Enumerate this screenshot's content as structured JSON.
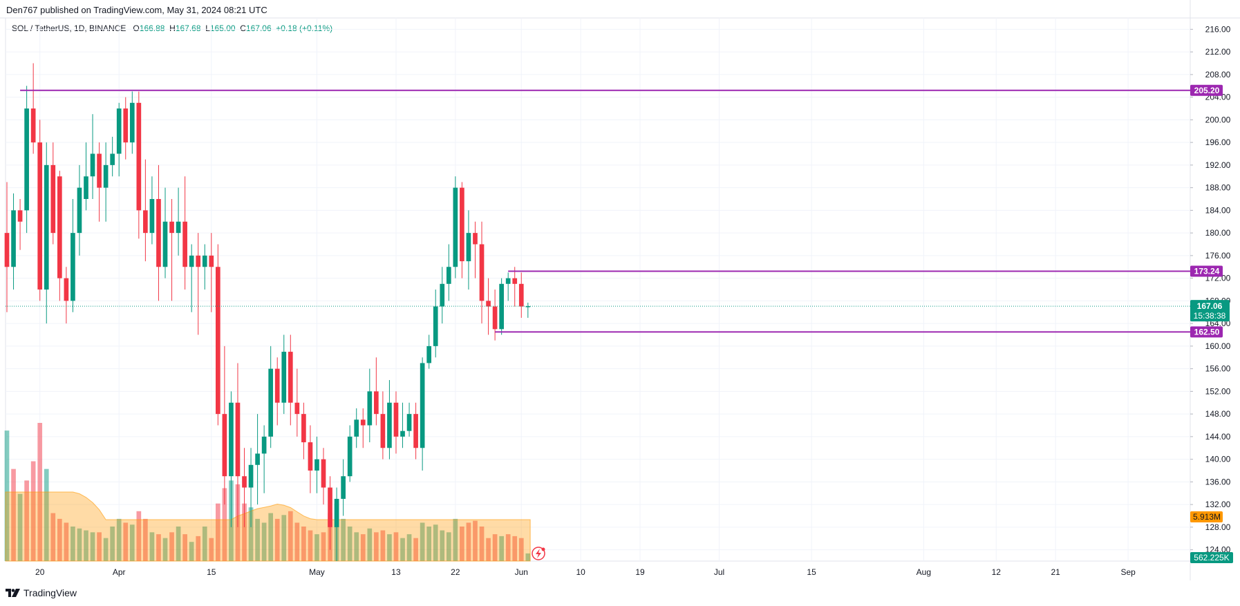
{
  "header": {
    "published_by": "Den767 published on TradingView.com, May 31, 2024 08:21 UTC"
  },
  "legend": {
    "symbol": "SOL / TetherUS, 1D, BINANCE",
    "open_label": "O",
    "open": "166.88",
    "high_label": "H",
    "high": "167.68",
    "low_label": "L",
    "low": "165.00",
    "close_label": "C",
    "close": "167.06",
    "change": "+0.18 (+0.11%)"
  },
  "footer": {
    "brand": "TradingView"
  },
  "colors": {
    "up": "#089981",
    "down": "#f23645",
    "level_line": "#9c27b0",
    "volume_ma": "#ff9800",
    "grid": "#f0f3fa",
    "axis_text": "#131722"
  },
  "icons": {
    "brand_logo": "tradingview-logo-icon",
    "replay": "lightning-icon"
  },
  "chart_data": {
    "type": "candlestick",
    "symbol": "SOL / TetherUS",
    "interval": "1D",
    "exchange": "BINANCE",
    "ylim": [
      122,
      218
    ],
    "y_ticks": [
      "124.00",
      "128.00",
      "132.00",
      "136.00",
      "140.00",
      "144.00",
      "148.00",
      "152.00",
      "156.00",
      "160.00",
      "164.00",
      "168.00",
      "172.00",
      "176.00",
      "180.00",
      "184.00",
      "188.00",
      "192.00",
      "196.00",
      "200.00",
      "204.00",
      "208.00",
      "212.00",
      "216.00"
    ],
    "x_ticks": [
      {
        "label": "20",
        "day": 0
      },
      {
        "label": "Apr",
        "day": 12
      },
      {
        "label": "15",
        "day": 26
      },
      {
        "label": "May",
        "day": 42
      },
      {
        "label": "13",
        "day": 54
      },
      {
        "label": "22",
        "day": 63
      },
      {
        "label": "Jun",
        "day": 73
      },
      {
        "label": "10",
        "day": 82
      },
      {
        "label": "19",
        "day": 91
      },
      {
        "label": "Jul",
        "day": 103
      },
      {
        "label": "15",
        "day": 117
      },
      {
        "label": "Aug",
        "day": 134
      },
      {
        "label": "12",
        "day": 145
      },
      {
        "label": "21",
        "day": 154
      },
      {
        "label": "Sep",
        "day": 165
      }
    ],
    "day_start": -5,
    "day_end": 174,
    "candles": [
      [
        -5,
        180,
        174,
        189,
        166
      ],
      [
        -4,
        174,
        184,
        187,
        170
      ],
      [
        -3,
        184,
        182,
        186,
        177
      ],
      [
        -2,
        184,
        202,
        206,
        180
      ],
      [
        -1,
        202,
        196,
        210,
        194
      ],
      [
        0,
        196,
        170,
        200,
        168
      ],
      [
        1,
        170,
        192,
        196,
        164
      ],
      [
        2,
        192,
        180,
        196,
        178
      ],
      [
        3,
        190,
        172,
        191,
        168
      ],
      [
        4,
        172,
        168,
        174,
        164
      ],
      [
        5,
        168,
        180,
        186,
        166
      ],
      [
        6,
        180,
        188,
        192,
        176
      ],
      [
        7,
        186,
        190,
        196,
        184
      ],
      [
        8,
        190,
        194,
        201,
        186
      ],
      [
        9,
        194,
        188,
        196,
        182
      ],
      [
        10,
        188,
        192,
        196,
        182
      ],
      [
        11,
        192,
        194,
        197,
        190
      ],
      [
        12,
        194,
        202,
        203,
        190
      ],
      [
        13,
        202,
        196,
        204,
        193
      ],
      [
        14,
        196,
        203,
        205,
        194
      ],
      [
        15,
        203,
        184,
        205,
        179
      ],
      [
        16,
        184,
        180,
        193,
        175
      ],
      [
        17,
        180,
        186,
        190,
        178
      ],
      [
        18,
        186,
        174,
        192,
        168
      ],
      [
        19,
        174,
        182,
        188,
        172
      ],
      [
        20,
        182,
        180,
        186,
        168
      ],
      [
        21,
        180,
        182,
        188,
        176
      ],
      [
        22,
        182,
        174,
        190,
        170
      ],
      [
        23,
        174,
        176,
        178,
        166
      ],
      [
        24,
        176,
        174,
        180,
        162
      ],
      [
        25,
        174,
        176,
        178,
        170
      ],
      [
        26,
        176,
        174,
        180,
        166
      ],
      [
        27,
        174,
        148,
        178,
        146
      ],
      [
        28,
        148,
        137,
        160,
        132
      ],
      [
        29,
        137,
        150,
        152,
        128
      ],
      [
        30,
        150,
        137,
        157,
        128
      ],
      [
        31,
        137,
        135,
        142,
        128
      ],
      [
        32,
        135,
        139,
        142,
        128
      ],
      [
        33,
        139,
        141,
        148,
        132
      ],
      [
        34,
        141,
        144,
        146,
        134
      ],
      [
        35,
        144,
        156,
        160,
        142
      ],
      [
        36,
        156,
        150,
        158,
        146
      ],
      [
        37,
        150,
        159,
        162,
        148
      ],
      [
        38,
        159,
        150,
        162,
        146
      ],
      [
        39,
        150,
        148,
        156,
        144
      ],
      [
        40,
        148,
        143,
        150,
        140
      ],
      [
        41,
        143,
        138,
        146,
        134
      ],
      [
        42,
        138,
        140,
        144,
        134
      ],
      [
        43,
        140,
        135,
        142,
        132
      ],
      [
        44,
        135,
        128,
        137,
        124
      ],
      [
        45,
        128,
        133,
        135,
        122
      ],
      [
        46,
        133,
        137,
        140,
        130
      ],
      [
        47,
        137,
        144,
        146,
        136
      ],
      [
        48,
        144,
        147,
        149,
        142
      ],
      [
        49,
        147,
        146,
        149,
        142
      ],
      [
        50,
        146,
        152,
        156,
        143
      ],
      [
        51,
        152,
        148,
        158,
        146
      ],
      [
        52,
        148,
        142,
        152,
        140
      ],
      [
        53,
        142,
        150,
        154,
        140
      ],
      [
        54,
        150,
        144,
        152,
        141
      ],
      [
        55,
        144,
        145,
        150,
        142
      ],
      [
        56,
        145,
        148,
        150,
        144
      ],
      [
        57,
        148,
        142,
        150,
        140
      ],
      [
        58,
        142,
        157,
        158,
        138
      ],
      [
        59,
        157,
        160,
        162,
        156
      ],
      [
        60,
        160,
        167,
        170,
        158
      ],
      [
        61,
        167,
        171,
        174,
        164
      ],
      [
        62,
        171,
        174,
        178,
        168
      ],
      [
        63,
        174,
        188,
        190,
        172
      ],
      [
        64,
        188,
        175,
        189,
        172
      ],
      [
        65,
        175,
        180,
        184,
        170
      ],
      [
        66,
        180,
        178,
        182,
        172
      ],
      [
        67,
        178,
        168,
        182,
        164
      ],
      [
        68,
        168,
        167,
        172,
        162
      ],
      [
        69,
        167,
        163,
        170,
        161
      ],
      [
        70,
        163,
        171,
        172,
        162
      ],
      [
        71,
        171,
        172,
        173,
        168
      ],
      [
        72,
        172,
        171,
        174,
        167
      ],
      [
        73,
        171,
        167,
        173,
        165
      ],
      [
        74,
        166.88,
        167.06,
        167.68,
        165.0
      ]
    ],
    "volume_max_label": "562.225K",
    "volume_ma_label": "5.913M",
    "volumes": [
      [
        -5,
        0.68,
        "up"
      ],
      [
        -4,
        0.48,
        "down"
      ],
      [
        -3,
        0.35,
        "up"
      ],
      [
        -2,
        0.42,
        "down"
      ],
      [
        -1,
        0.52,
        "down"
      ],
      [
        0,
        0.72,
        "down"
      ],
      [
        1,
        0.48,
        "up"
      ],
      [
        2,
        0.25,
        "down"
      ],
      [
        3,
        0.22,
        "down"
      ],
      [
        4,
        0.2,
        "down"
      ],
      [
        5,
        0.18,
        "up"
      ],
      [
        6,
        0.17,
        "up"
      ],
      [
        7,
        0.16,
        "up"
      ],
      [
        8,
        0.15,
        "up"
      ],
      [
        9,
        0.15,
        "down"
      ],
      [
        10,
        0.12,
        "up"
      ],
      [
        11,
        0.18,
        "up"
      ],
      [
        12,
        0.22,
        "up"
      ],
      [
        13,
        0.2,
        "down"
      ],
      [
        14,
        0.19,
        "up"
      ],
      [
        15,
        0.26,
        "down"
      ],
      [
        16,
        0.22,
        "down"
      ],
      [
        17,
        0.15,
        "up"
      ],
      [
        18,
        0.14,
        "down"
      ],
      [
        19,
        0.12,
        "up"
      ],
      [
        20,
        0.15,
        "down"
      ],
      [
        21,
        0.18,
        "up"
      ],
      [
        22,
        0.14,
        "down"
      ],
      [
        23,
        0.1,
        "up"
      ],
      [
        24,
        0.13,
        "down"
      ],
      [
        25,
        0.18,
        "up"
      ],
      [
        26,
        0.12,
        "down"
      ],
      [
        27,
        0.3,
        "down"
      ],
      [
        28,
        0.38,
        "down"
      ],
      [
        29,
        0.42,
        "up"
      ],
      [
        30,
        0.4,
        "down"
      ],
      [
        31,
        0.3,
        "down"
      ],
      [
        32,
        0.28,
        "up"
      ],
      [
        33,
        0.22,
        "up"
      ],
      [
        34,
        0.2,
        "up"
      ],
      [
        35,
        0.25,
        "up"
      ],
      [
        36,
        0.22,
        "down"
      ],
      [
        37,
        0.24,
        "up"
      ],
      [
        38,
        0.26,
        "down"
      ],
      [
        39,
        0.2,
        "down"
      ],
      [
        40,
        0.18,
        "down"
      ],
      [
        41,
        0.16,
        "down"
      ],
      [
        42,
        0.14,
        "up"
      ],
      [
        43,
        0.15,
        "down"
      ],
      [
        44,
        0.25,
        "down"
      ],
      [
        45,
        0.3,
        "up"
      ],
      [
        46,
        0.22,
        "up"
      ],
      [
        47,
        0.18,
        "up"
      ],
      [
        48,
        0.15,
        "up"
      ],
      [
        49,
        0.14,
        "down"
      ],
      [
        50,
        0.17,
        "up"
      ],
      [
        51,
        0.15,
        "down"
      ],
      [
        52,
        0.16,
        "down"
      ],
      [
        53,
        0.14,
        "up"
      ],
      [
        54,
        0.15,
        "down"
      ],
      [
        55,
        0.12,
        "up"
      ],
      [
        56,
        0.14,
        "up"
      ],
      [
        57,
        0.12,
        "down"
      ],
      [
        58,
        0.2,
        "up"
      ],
      [
        59,
        0.18,
        "up"
      ],
      [
        60,
        0.19,
        "up"
      ],
      [
        61,
        0.16,
        "up"
      ],
      [
        62,
        0.15,
        "up"
      ],
      [
        63,
        0.22,
        "up"
      ],
      [
        64,
        0.18,
        "down"
      ],
      [
        65,
        0.2,
        "down"
      ],
      [
        66,
        0.21,
        "down"
      ],
      [
        67,
        0.18,
        "down"
      ],
      [
        68,
        0.12,
        "down"
      ],
      [
        69,
        0.14,
        "down"
      ],
      [
        70,
        0.13,
        "up"
      ],
      [
        71,
        0.14,
        "down"
      ],
      [
        72,
        0.13,
        "down"
      ],
      [
        73,
        0.12,
        "down"
      ],
      [
        74,
        0.04,
        "up"
      ]
    ],
    "horizontal_levels": [
      {
        "price": 205.2,
        "label": "205.20",
        "start_day": -3
      },
      {
        "price": 173.24,
        "label": "173.24",
        "start_day": 71
      },
      {
        "price": 162.5,
        "label": "162.50",
        "start_day": 69
      }
    ],
    "last_price": {
      "price": 167.06,
      "label": "167.06",
      "countdown": "15:38:38"
    },
    "hidden_tick_label": "164.00"
  }
}
